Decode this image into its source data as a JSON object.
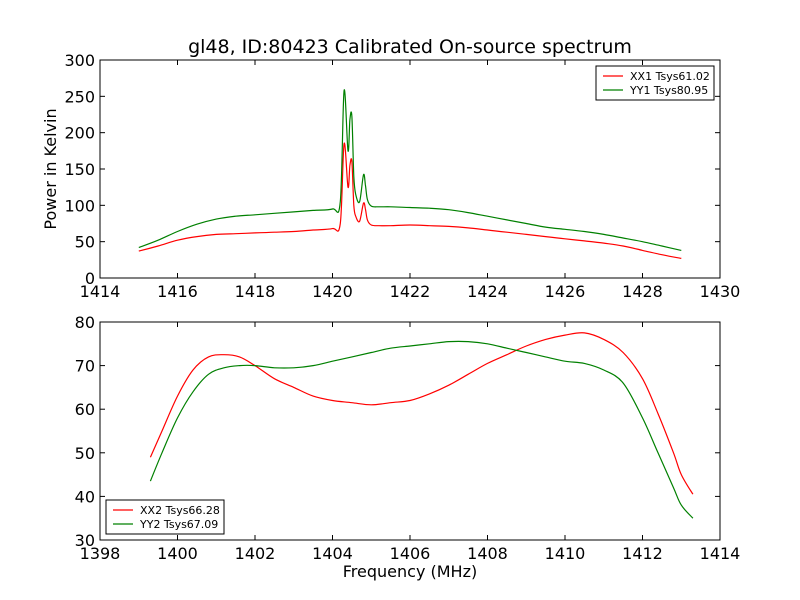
{
  "title": "gl48, ID:80423 Calibrated On-source spectrum",
  "chart_data": [
    {
      "type": "line",
      "ylabel": "Power in Kelvin",
      "xlabel": "",
      "xlim": [
        1414,
        1430
      ],
      "ylim": [
        0,
        300
      ],
      "xticks": [
        "1414",
        "1416",
        "1418",
        "1420",
        "1422",
        "1424",
        "1426",
        "1428",
        "1430"
      ],
      "yticks": [
        "0",
        "50",
        "100",
        "150",
        "200",
        "250",
        "300"
      ],
      "legend_position": "top-right",
      "series": [
        {
          "name": "XX1 Tsys61.02",
          "color": "#ff0000",
          "x": [
            1415.0,
            1415.5,
            1416.0,
            1416.5,
            1417.0,
            1417.5,
            1418.0,
            1418.5,
            1419.0,
            1419.5,
            1420.0,
            1420.2,
            1420.3,
            1420.4,
            1420.45,
            1420.5,
            1420.55,
            1420.6,
            1420.7,
            1420.8,
            1420.85,
            1420.9,
            1421.0,
            1421.2,
            1421.5,
            1422.0,
            1422.5,
            1423.0,
            1423.5,
            1424.0,
            1424.5,
            1425.0,
            1425.5,
            1426.0,
            1426.5,
            1427.0,
            1427.5,
            1428.0,
            1428.5,
            1429.0
          ],
          "values": [
            37,
            44,
            52,
            57,
            60,
            61,
            62,
            63,
            64,
            66,
            68,
            75,
            185,
            125,
            155,
            160,
            100,
            85,
            78,
            103,
            95,
            80,
            73,
            72,
            72,
            73,
            72,
            71,
            69,
            66,
            63,
            60,
            57,
            54,
            51,
            48,
            44,
            38,
            32,
            27
          ]
        },
        {
          "name": "YY1 Tsys80.95",
          "color": "#008000",
          "x": [
            1415.0,
            1415.5,
            1416.0,
            1416.5,
            1417.0,
            1417.5,
            1418.0,
            1418.5,
            1419.0,
            1419.5,
            1420.0,
            1420.2,
            1420.3,
            1420.4,
            1420.45,
            1420.5,
            1420.55,
            1420.6,
            1420.7,
            1420.8,
            1420.85,
            1420.9,
            1421.0,
            1421.2,
            1421.5,
            1422.0,
            1422.5,
            1423.0,
            1423.5,
            1424.0,
            1424.5,
            1425.0,
            1425.5,
            1426.0,
            1426.5,
            1427.0,
            1427.5,
            1428.0,
            1428.5,
            1429.0
          ],
          "values": [
            42,
            52,
            64,
            74,
            81,
            85,
            87,
            89,
            91,
            93,
            95,
            105,
            258,
            175,
            218,
            222,
            140,
            115,
            105,
            142,
            128,
            108,
            99,
            98,
            98,
            97,
            96,
            94,
            90,
            85,
            80,
            75,
            70,
            67,
            64,
            60,
            55,
            50,
            44,
            38
          ]
        }
      ]
    },
    {
      "type": "line",
      "ylabel": "",
      "xlabel": "Frequency (MHz)",
      "xlim": [
        1398,
        1414
      ],
      "ylim": [
        30,
        80
      ],
      "xticks": [
        "1398",
        "1400",
        "1402",
        "1404",
        "1406",
        "1408",
        "1410",
        "1412",
        "1414"
      ],
      "yticks": [
        "30",
        "40",
        "50",
        "60",
        "70",
        "80"
      ],
      "legend_position": "bottom-left",
      "series": [
        {
          "name": "XX2 Tsys66.28",
          "color": "#ff0000",
          "x": [
            1399.3,
            1399.6,
            1400.0,
            1400.4,
            1400.8,
            1401.2,
            1401.6,
            1402.0,
            1402.5,
            1403.0,
            1403.5,
            1404.0,
            1404.5,
            1405.0,
            1405.5,
            1406.0,
            1406.5,
            1407.0,
            1407.5,
            1408.0,
            1408.5,
            1409.0,
            1409.5,
            1410.0,
            1410.5,
            1411.0,
            1411.5,
            1412.0,
            1412.4,
            1412.8,
            1413.0,
            1413.3
          ],
          "values": [
            49,
            55,
            63,
            69,
            72,
            72.5,
            72,
            70,
            67,
            65,
            63,
            62,
            61.5,
            61,
            61.5,
            62,
            63.5,
            65.5,
            68,
            70.5,
            72.5,
            74.5,
            76,
            77,
            77.5,
            76,
            73,
            67,
            59,
            50,
            45,
            40.5
          ]
        },
        {
          "name": "YY2 Tsys67.09",
          "color": "#008000",
          "x": [
            1399.3,
            1399.6,
            1400.0,
            1400.4,
            1400.8,
            1401.2,
            1401.6,
            1402.0,
            1402.5,
            1403.0,
            1403.5,
            1404.0,
            1404.5,
            1405.0,
            1405.5,
            1406.0,
            1406.5,
            1407.0,
            1407.5,
            1408.0,
            1408.5,
            1409.0,
            1409.5,
            1410.0,
            1410.5,
            1411.0,
            1411.5,
            1412.0,
            1412.4,
            1412.8,
            1413.0,
            1413.3
          ],
          "values": [
            43.5,
            50,
            58,
            64,
            68,
            69.5,
            70,
            70,
            69.5,
            69.5,
            70,
            71,
            72,
            73,
            74,
            74.5,
            75,
            75.5,
            75.5,
            75,
            74,
            73,
            72,
            71,
            70.5,
            69,
            66,
            58,
            50,
            42,
            38,
            35
          ]
        }
      ]
    }
  ]
}
